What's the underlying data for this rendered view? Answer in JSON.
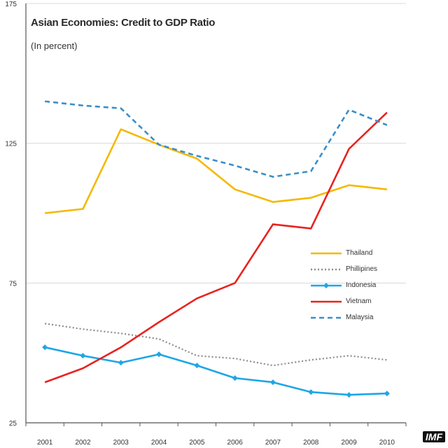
{
  "chart_data": {
    "type": "line",
    "title": "Asian Economies: Credit to GDP Ratio",
    "subtitle": "(In percent)",
    "xlabel": "",
    "ylabel": "",
    "categories": [
      "2001",
      "2002",
      "2003",
      "2004",
      "2005",
      "2006",
      "2007",
      "2008",
      "2009",
      "2010"
    ],
    "ylim": [
      25,
      175
    ],
    "yticks": [
      25,
      75,
      125,
      175
    ],
    "ytick_labels": [
      "25",
      "75",
      "125",
      "175"
    ],
    "grid": true,
    "legend_position": "right-middle",
    "series": [
      {
        "name": "Thailand",
        "color": "#f5b800",
        "style": "solid",
        "marker": "none",
        "values": [
          100,
          101.5,
          130,
          124.5,
          119.5,
          108.5,
          104,
          105.5,
          110,
          108.5
        ]
      },
      {
        "name": "Phillipines",
        "color": "#8c8c8c",
        "style": "dotted",
        "marker": "none",
        "values": [
          60.5,
          58.5,
          57,
          55,
          49,
          48,
          45.5,
          47.5,
          49,
          47.5
        ]
      },
      {
        "name": "Indonesia",
        "color": "#1ea6e6",
        "style": "solid",
        "marker": "diamond",
        "values": [
          52,
          49,
          46.5,
          49.5,
          45.5,
          41,
          39.5,
          36,
          35,
          35.5
        ]
      },
      {
        "name": "Vietnam",
        "color": "#e8231f",
        "style": "solid",
        "marker": "none",
        "values": [
          39.5,
          44.5,
          52,
          61,
          69.5,
          75,
          96,
          94.5,
          123,
          136
        ]
      },
      {
        "name": "Malaysia",
        "color": "#3a8fc8",
        "style": "dashed",
        "marker": "none",
        "values": [
          140,
          138.5,
          137.5,
          124.5,
          120.5,
          117,
          113,
          115,
          137,
          131.5
        ]
      }
    ]
  },
  "source_label": "IMF"
}
